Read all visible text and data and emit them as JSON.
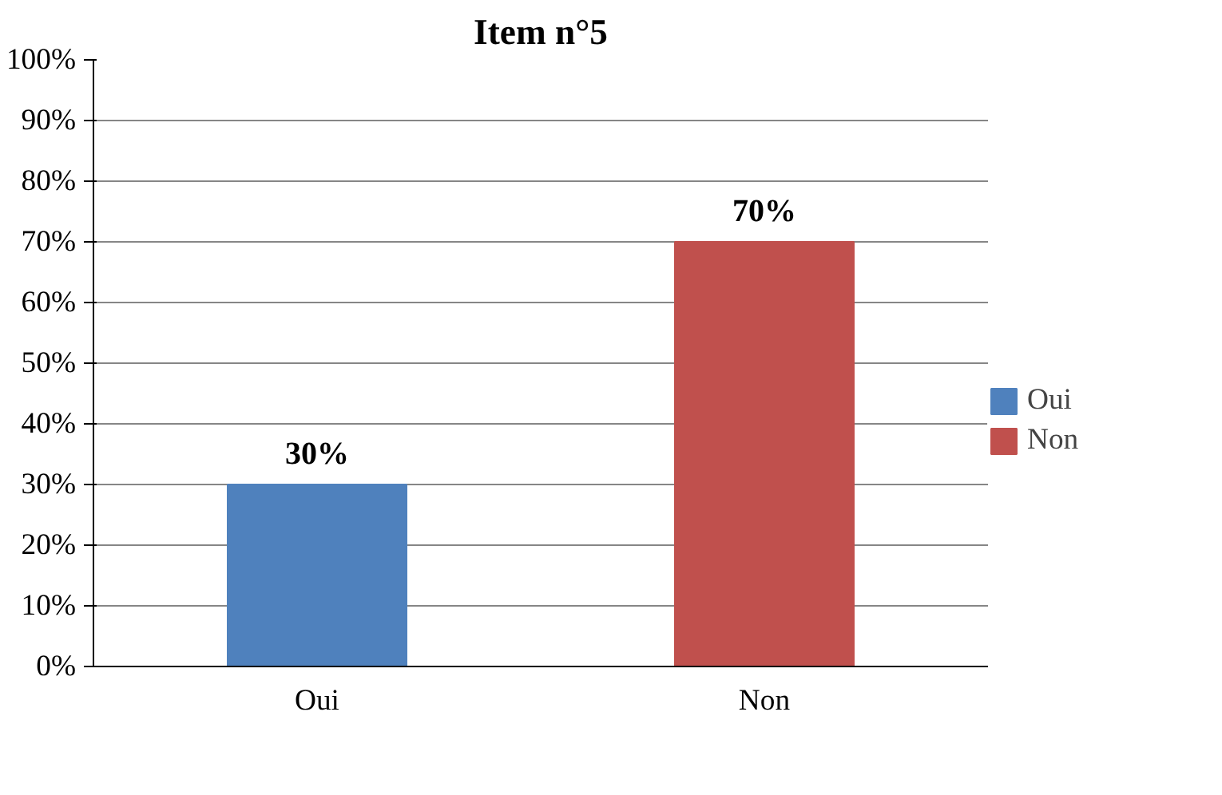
{
  "chart_data": {
    "type": "bar",
    "title": "Item n°5",
    "categories": [
      "Oui",
      "Non"
    ],
    "series": [
      {
        "name": "Oui",
        "color": "#4f81bd",
        "values": [
          30,
          null
        ],
        "value_labels": [
          "30%",
          null
        ]
      },
      {
        "name": "Non",
        "color": "#c0504d",
        "values": [
          null,
          70
        ],
        "value_labels": [
          null,
          "70%"
        ]
      }
    ],
    "ylim": [
      0,
      100
    ],
    "yticks": [
      {
        "value": 0,
        "label": "0%"
      },
      {
        "value": 10,
        "label": "10%"
      },
      {
        "value": 20,
        "label": "20%"
      },
      {
        "value": 30,
        "label": "30%"
      },
      {
        "value": 40,
        "label": "40%"
      },
      {
        "value": 50,
        "label": "50%"
      },
      {
        "value": 60,
        "label": "60%"
      },
      {
        "value": 70,
        "label": "70%"
      },
      {
        "value": 80,
        "label": "80%"
      },
      {
        "value": 90,
        "label": "90%"
      },
      {
        "value": 100,
        "label": "100%"
      }
    ],
    "grid": "y",
    "legend": "right"
  }
}
